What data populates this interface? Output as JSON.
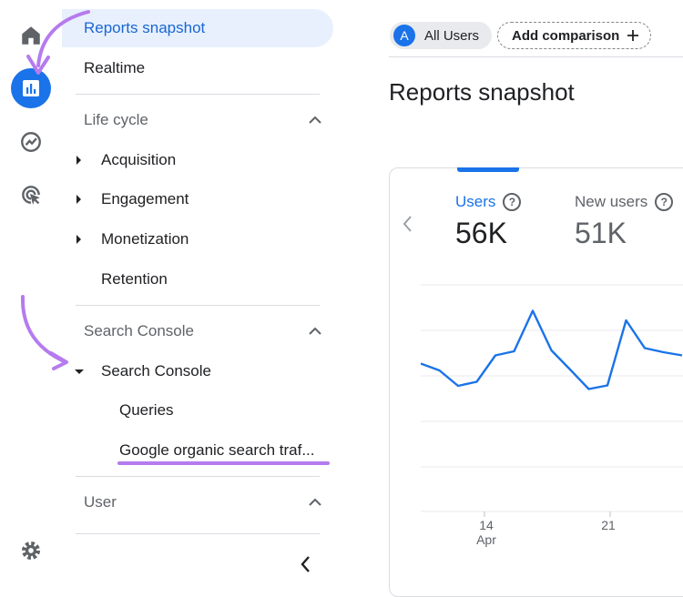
{
  "nav": {
    "items": [
      {
        "label": "Reports snapshot"
      },
      {
        "label": "Realtime"
      }
    ],
    "sections": [
      {
        "title": "Life cycle",
        "items": [
          {
            "label": "Acquisition"
          },
          {
            "label": "Engagement"
          },
          {
            "label": "Monetization"
          },
          {
            "label": "Retention"
          }
        ]
      },
      {
        "title": "Search Console",
        "items": [
          {
            "label": "Search Console"
          },
          {
            "label": "Queries"
          },
          {
            "label": "Google organic search traf..."
          }
        ]
      },
      {
        "title": "User"
      }
    ]
  },
  "header": {
    "user_chip": {
      "avatar": "A",
      "label": "All Users"
    },
    "add_comparison": "Add comparison",
    "title": "Reports snapshot"
  },
  "metrics": [
    {
      "label": "Users",
      "value": "56K"
    },
    {
      "label": "New users",
      "value": "51K"
    }
  ],
  "chart_data": {
    "type": "line",
    "x_tick_labels": [
      [
        "14",
        "Apr"
      ],
      [
        "21",
        ""
      ]
    ],
    "series": [
      {
        "values": [
          0.73,
          0.88,
          1.22,
          1.13,
          0.55,
          0.46,
          -0.43,
          0.44,
          0.86,
          1.29,
          1.21,
          -0.22,
          0.39,
          0.48,
          0.55
        ]
      }
    ],
    "grid": true
  },
  "colors": {
    "accent": "#1a73e8",
    "annotation": "#b57bee",
    "selected_bg": "#e8f0fe"
  },
  "icons": [
    "home-icon",
    "reports-icon",
    "explore-icon",
    "advertising-icon",
    "settings-icon",
    "collapse-chevron-icon"
  ]
}
